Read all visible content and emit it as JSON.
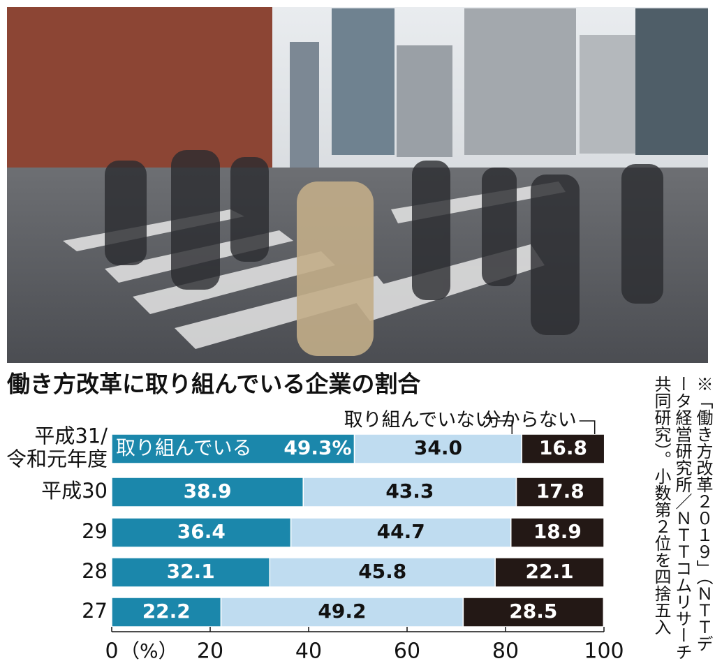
{
  "chart_data": {
    "type": "bar",
    "orientation": "horizontal",
    "stacked": true,
    "title": "働き方改革に取り組んでいる企業の割合",
    "categories": [
      "平成31/\n令和元年度",
      "平成30",
      "29",
      "28",
      "27"
    ],
    "series": [
      {
        "name": "取り組んでいる",
        "color": "#1b87ab",
        "values": [
          49.3,
          38.9,
          36.4,
          32.1,
          22.2
        ],
        "value_labels": [
          "49.3%",
          "38.9",
          "36.4",
          "32.1",
          "22.2"
        ]
      },
      {
        "name": "取り組んでいない",
        "color": "#bfdcf0",
        "values": [
          34.0,
          43.3,
          44.7,
          45.8,
          49.2
        ],
        "value_labels": [
          "34.0",
          "43.3",
          "44.7",
          "45.8",
          "49.2"
        ]
      },
      {
        "name": "分からない",
        "color": "#231815",
        "values": [
          16.8,
          17.8,
          18.9,
          22.1,
          28.5
        ]
      }
    ],
    "x_label": "（%）",
    "xlim": [
      0,
      100
    ],
    "xticks": [
      0,
      20,
      40,
      60,
      80,
      100
    ],
    "note": "※「働き方改革２０１９」（ＮＴＴデータ経営研究所／ＮＴＴコムリサーチ 共同研究）。小数第２位を四捨五入"
  }
}
